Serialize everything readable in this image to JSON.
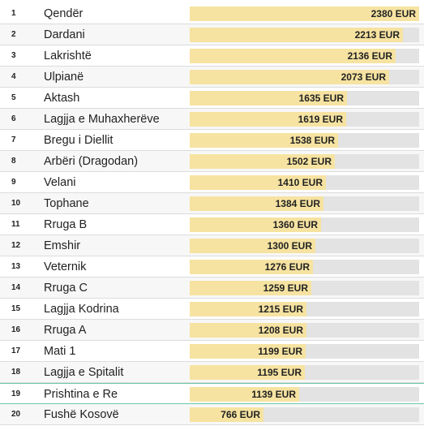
{
  "chart_data": {
    "type": "bar",
    "orientation": "horizontal",
    "unit": "EUR",
    "xlim": [
      0,
      2380
    ],
    "rows": [
      {
        "rank": "1",
        "name": "Qendër",
        "value": 2380,
        "label": "2380 EUR"
      },
      {
        "rank": "2",
        "name": "Dardani",
        "value": 2213,
        "label": "2213 EUR"
      },
      {
        "rank": "3",
        "name": "Lakrishtë",
        "value": 2136,
        "label": "2136 EUR"
      },
      {
        "rank": "4",
        "name": "Ulpianë",
        "value": 2073,
        "label": "2073 EUR"
      },
      {
        "rank": "5",
        "name": "Aktash",
        "value": 1635,
        "label": "1635 EUR"
      },
      {
        "rank": "6",
        "name": "Lagjja e Muhaxherëve",
        "value": 1619,
        "label": "1619 EUR"
      },
      {
        "rank": "7",
        "name": "Bregu i Diellit",
        "value": 1538,
        "label": "1538 EUR"
      },
      {
        "rank": "8",
        "name": "Arbëri (Dragodan)",
        "value": 1502,
        "label": "1502 EUR"
      },
      {
        "rank": "9",
        "name": "Velani",
        "value": 1410,
        "label": "1410 EUR"
      },
      {
        "rank": "10",
        "name": "Tophane",
        "value": 1384,
        "label": "1384 EUR"
      },
      {
        "rank": "11",
        "name": "Rruga B",
        "value": 1360,
        "label": "1360 EUR"
      },
      {
        "rank": "12",
        "name": "Emshir",
        "value": 1300,
        "label": "1300 EUR"
      },
      {
        "rank": "13",
        "name": "Veternik",
        "value": 1276,
        "label": "1276 EUR"
      },
      {
        "rank": "14",
        "name": "Rruga C",
        "value": 1259,
        "label": "1259 EUR"
      },
      {
        "rank": "15",
        "name": "Lagjja Kodrina",
        "value": 1215,
        "label": "1215 EUR"
      },
      {
        "rank": "16",
        "name": "Rruga A",
        "value": 1208,
        "label": "1208 EUR"
      },
      {
        "rank": "17",
        "name": "Mati 1",
        "value": 1199,
        "label": "1199 EUR"
      },
      {
        "rank": "18",
        "name": "Lagjja e Spitalit",
        "value": 1195,
        "label": "1195 EUR"
      },
      {
        "rank": "19",
        "name": "Prishtina e Re",
        "value": 1139,
        "label": "1139 EUR"
      },
      {
        "rank": "20",
        "name": "Fushë Kosovë",
        "value": 766,
        "label": "766 EUR"
      }
    ],
    "highlighted_ranks": [
      "19"
    ],
    "colors": {
      "bar_fill": "#f6e3a1",
      "bar_track": "#e3e3e3",
      "highlight_border": "#6cc7a8"
    }
  }
}
